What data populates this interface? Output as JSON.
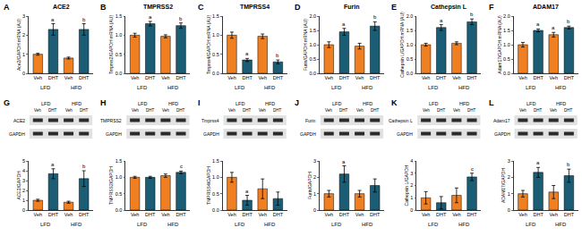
{
  "chart_data": [
    {
      "type": "bar",
      "panel": "A",
      "title": "ACE2",
      "y_label": "Ace2/GAPDH mRNA (AU)",
      "categories": [
        "Veh",
        "DHT",
        "Veh",
        "DHT"
      ],
      "groups": [
        "LFD",
        "HFD"
      ],
      "values": [
        1.0,
        2.3,
        0.8,
        2.3
      ],
      "errors": [
        0.05,
        0.3,
        0.05,
        0.3
      ],
      "colors": [
        "#f07f22",
        "#1a5d75",
        "#f07f22",
        "#1a5d75"
      ],
      "annotations": [
        null,
        "a",
        null,
        "b"
      ],
      "ylim": [
        0,
        3
      ],
      "yticks": [
        0,
        1,
        2,
        3
      ],
      "grid": false
    },
    {
      "type": "bar",
      "panel": "B",
      "title": "TMPRSS2",
      "y_label": "Tmprss2/GAPDH mRNA (AU)",
      "categories": [
        "Veh",
        "DHT",
        "Veh",
        "DHT"
      ],
      "groups": [
        "LFD",
        "HFD"
      ],
      "values": [
        1.0,
        1.3,
        0.97,
        1.25
      ],
      "errors": [
        0.05,
        0.06,
        0.04,
        0.07
      ],
      "colors": [
        "#f07f22",
        "#1a5d75",
        "#f07f22",
        "#1a5d75"
      ],
      "annotations": [
        null,
        "a",
        null,
        "b"
      ],
      "ylim": [
        0,
        1.5
      ],
      "yticks": [
        {
          "value": 0,
          "label": "0.0"
        },
        {
          "value": 0.5,
          "label": "0.5"
        },
        {
          "value": 1,
          "label": "1.0"
        },
        {
          "value": 1.5,
          "label": "1.5"
        }
      ],
      "grid": false
    },
    {
      "type": "bar",
      "panel": "C",
      "title": "TMPRSS4",
      "y_label": "Tmprss4/GAPDH mRNA (AU)",
      "categories": [
        "Veh",
        "DHT",
        "Veh",
        "DHT"
      ],
      "groups": [
        "LFD",
        "HFD"
      ],
      "values": [
        1.0,
        0.35,
        0.97,
        0.3
      ],
      "errors": [
        0.08,
        0.04,
        0.06,
        0.05
      ],
      "colors": [
        "#f07f22",
        "#1a5d75",
        "#f07f22",
        "#1a5d75"
      ],
      "annotations": [
        null,
        "a",
        null,
        "b"
      ],
      "ylim": [
        0,
        1.5
      ],
      "yticks": [
        {
          "value": 0,
          "label": "0.0"
        },
        {
          "value": 0.5,
          "label": "0.5"
        },
        {
          "value": 1,
          "label": "1.0"
        },
        {
          "value": 1.5,
          "label": "1.5"
        }
      ],
      "grid": false
    },
    {
      "type": "bar",
      "panel": "D",
      "title": "Furin",
      "y_label": "Furin/GAPDH mRNA (AU)",
      "categories": [
        "Veh",
        "DHT",
        "Veh",
        "DHT"
      ],
      "groups": [
        "LFD",
        "HFD"
      ],
      "values": [
        1.0,
        1.45,
        0.95,
        1.65
      ],
      "errors": [
        0.1,
        0.12,
        0.1,
        0.15
      ],
      "colors": [
        "#f07f22",
        "#1a5d75",
        "#f07f22",
        "#1a5d75"
      ],
      "annotations": [
        null,
        "a",
        null,
        "b"
      ],
      "ylim": [
        0,
        2
      ],
      "yticks": [
        {
          "value": 0,
          "label": "0.0"
        },
        {
          "value": 0.5,
          "label": "0.5"
        },
        {
          "value": 1,
          "label": "1.0"
        },
        {
          "value": 1.5,
          "label": "1.5"
        },
        {
          "value": 2,
          "label": "2.0"
        }
      ],
      "grid": false
    },
    {
      "type": "bar",
      "panel": "E",
      "title": "Cathepsin L",
      "y_label": "Cathepsin L/GAPDH mRNA (AU)",
      "categories": [
        "Veh",
        "DHT",
        "Veh",
        "DHT"
      ],
      "groups": [
        "LFD",
        "HFD"
      ],
      "values": [
        1.0,
        1.6,
        1.05,
        1.8
      ],
      "errors": [
        0.05,
        0.1,
        0.05,
        0.1
      ],
      "colors": [
        "#f07f22",
        "#1a5d75",
        "#f07f22",
        "#1a5d75"
      ],
      "annotations": [
        null,
        "a",
        null,
        "b"
      ],
      "ylim": [
        0,
        2
      ],
      "yticks": [
        {
          "value": 0,
          "label": "0.0"
        },
        {
          "value": 0.5,
          "label": "0.5"
        },
        {
          "value": 1,
          "label": "1.0"
        },
        {
          "value": 1.5,
          "label": "1.5"
        },
        {
          "value": 2,
          "label": "2.0"
        }
      ],
      "grid": false
    },
    {
      "type": "bar",
      "panel": "F",
      "title": "ADAM17",
      "y_label": "Adam17/GAPDH mRNA (AU)",
      "categories": [
        "Veh",
        "DHT",
        "Veh",
        "DHT"
      ],
      "groups": [
        "LFD",
        "HFD"
      ],
      "values": [
        1.0,
        1.5,
        1.35,
        1.6
      ],
      "errors": [
        0.08,
        0.05,
        0.08,
        0.05
      ],
      "colors": [
        "#f07f22",
        "#1a5d75",
        "#f07f22",
        "#1a5d75"
      ],
      "annotations": [
        null,
        "a",
        "a",
        "b"
      ],
      "ylim": [
        0,
        2
      ],
      "yticks": [
        {
          "value": 0,
          "label": "0.0"
        },
        {
          "value": 0.5,
          "label": "0.5"
        },
        {
          "value": 1,
          "label": "1.0"
        },
        {
          "value": 1.5,
          "label": "1.5"
        },
        {
          "value": 2,
          "label": "2.0"
        }
      ],
      "grid": false
    },
    {
      "type": "bar",
      "panel": "G",
      "y_label": "ACE2/GAPDH",
      "blot": {
        "rows": [
          "ACE2",
          "GAPDH"
        ],
        "groups": [
          "LFD",
          "HFD"
        ],
        "lanes": [
          "Veh",
          "DHT",
          "Veh",
          "DHT"
        ]
      },
      "categories": [
        "Veh",
        "DHT",
        "Veh",
        "DHT"
      ],
      "groups": [
        "LFD",
        "HFD"
      ],
      "values": [
        1.0,
        3.7,
        0.8,
        3.2
      ],
      "errors": [
        0.1,
        0.5,
        0.1,
        0.8
      ],
      "colors": [
        "#f07f22",
        "#1a5d75",
        "#f07f22",
        "#1a5d75"
      ],
      "annotations": [
        null,
        "a",
        null,
        "b"
      ],
      "ylim": [
        0,
        5
      ],
      "yticks": [
        0,
        1,
        2,
        3,
        4,
        5
      ],
      "grid": false
    },
    {
      "type": "bar",
      "panel": "H",
      "y_label": "TMPRSS2/GAPDH",
      "blot": {
        "rows": [
          "TMPRSS2",
          "GAPDH"
        ],
        "groups": [
          "LFD",
          "HFD"
        ],
        "lanes": [
          "Veh",
          "DHT",
          "Veh",
          "DHT"
        ]
      },
      "categories": [
        "Veh",
        "DHT",
        "Veh",
        "DHT"
      ],
      "groups": [
        "LFD",
        "HFD"
      ],
      "values": [
        1.0,
        1.0,
        1.05,
        1.15
      ],
      "errors": [
        0.03,
        0.03,
        0.05,
        0.04
      ],
      "colors": [
        "#f07f22",
        "#1a5d75",
        "#f07f22",
        "#1a5d75"
      ],
      "annotations": [
        null,
        null,
        null,
        "c"
      ],
      "ylim": [
        0,
        1.5
      ],
      "yticks": [
        {
          "value": 0,
          "label": "0.0"
        },
        {
          "value": 0.5,
          "label": "0.5"
        },
        {
          "value": 1,
          "label": "1.0"
        },
        {
          "value": 1.5,
          "label": "1.5"
        }
      ],
      "grid": false
    },
    {
      "type": "bar",
      "panel": "I",
      "y_label": "TMPRSS4/GAPDH",
      "blot": {
        "rows": [
          "Tmprss4",
          "GAPDH"
        ],
        "groups": [
          "LFD",
          "HFD"
        ],
        "lanes": [
          "Veh",
          "DHT",
          "Veh",
          "DHT"
        ]
      },
      "categories": [
        "Veh",
        "DHT",
        "Veh",
        "DHT"
      ],
      "groups": [
        "LFD",
        "HFD"
      ],
      "values": [
        1.0,
        0.3,
        0.65,
        0.35
      ],
      "errors": [
        0.15,
        0.15,
        0.3,
        0.2
      ],
      "colors": [
        "#f07f22",
        "#1a5d75",
        "#f07f22",
        "#1a5d75"
      ],
      "annotations": [
        null,
        "a",
        null,
        null
      ],
      "ylim": [
        0,
        1.5
      ],
      "yticks": [
        {
          "value": 0,
          "label": "0.0"
        },
        {
          "value": 0.5,
          "label": "0.5"
        },
        {
          "value": 1,
          "label": "1.0"
        },
        {
          "value": 1.5,
          "label": "1.5"
        }
      ],
      "grid": false
    },
    {
      "type": "bar",
      "panel": "J",
      "y_label": "Furin/GAPDH",
      "blot": {
        "rows": [
          "Furin",
          "GAPDH"
        ],
        "groups": [
          "LFD",
          "HFD"
        ],
        "lanes": [
          "Veh",
          "DHT",
          "Veh",
          "DHT"
        ]
      },
      "categories": [
        "Veh",
        "DHT",
        "Veh",
        "DHT"
      ],
      "groups": [
        "LFD",
        "HFD"
      ],
      "values": [
        1.0,
        2.2,
        1.0,
        1.5
      ],
      "errors": [
        0.2,
        0.5,
        0.2,
        0.4
      ],
      "colors": [
        "#f07f22",
        "#1a5d75",
        "#f07f22",
        "#1a5d75"
      ],
      "annotations": [
        null,
        "a",
        null,
        null
      ],
      "ylim": [
        0,
        3
      ],
      "yticks": [
        0,
        1,
        2,
        3
      ],
      "grid": false
    },
    {
      "type": "bar",
      "panel": "K",
      "y_label": "Cathepsin L/GAPDH",
      "blot": {
        "rows": [
          "Cathepsin L",
          "GAPDH"
        ],
        "groups": [
          "LFD",
          "HFD"
        ],
        "lanes": [
          "Veh",
          "DHT",
          "Veh",
          "DHT"
        ]
      },
      "categories": [
        "Veh",
        "DHT",
        "Veh",
        "DHT"
      ],
      "groups": [
        "LFD",
        "HFD"
      ],
      "values": [
        1.0,
        0.6,
        1.2,
        2.7
      ],
      "errors": [
        0.5,
        0.5,
        0.6,
        0.3
      ],
      "colors": [
        "#f07f22",
        "#1a5d75",
        "#f07f22",
        "#1a5d75"
      ],
      "annotations": [
        null,
        null,
        null,
        "c"
      ],
      "ylim": [
        0,
        4
      ],
      "yticks": [
        0,
        1,
        2,
        3,
        4
      ],
      "grid": false
    },
    {
      "type": "bar",
      "panel": "L",
      "y_label": "ADAM17/GAPDH",
      "blot": {
        "rows": [
          "Adam17",
          "GAPDH"
        ],
        "groups": [
          "LFD",
          "HFD"
        ],
        "lanes": [
          "Veh",
          "DHT",
          "Veh",
          "DHT"
        ]
      },
      "categories": [
        "Veh",
        "DHT",
        "Veh",
        "DHT"
      ],
      "groups": [
        "LFD",
        "HFD"
      ],
      "values": [
        1.0,
        2.3,
        1.1,
        2.1
      ],
      "errors": [
        0.2,
        0.3,
        0.4,
        0.4
      ],
      "colors": [
        "#f07f22",
        "#1a5d75",
        "#f07f22",
        "#1a5d75"
      ],
      "annotations": [
        null,
        "a",
        null,
        "b"
      ],
      "ylim": [
        0,
        3
      ],
      "yticks": [
        0,
        1,
        2,
        3
      ],
      "grid": false
    }
  ]
}
